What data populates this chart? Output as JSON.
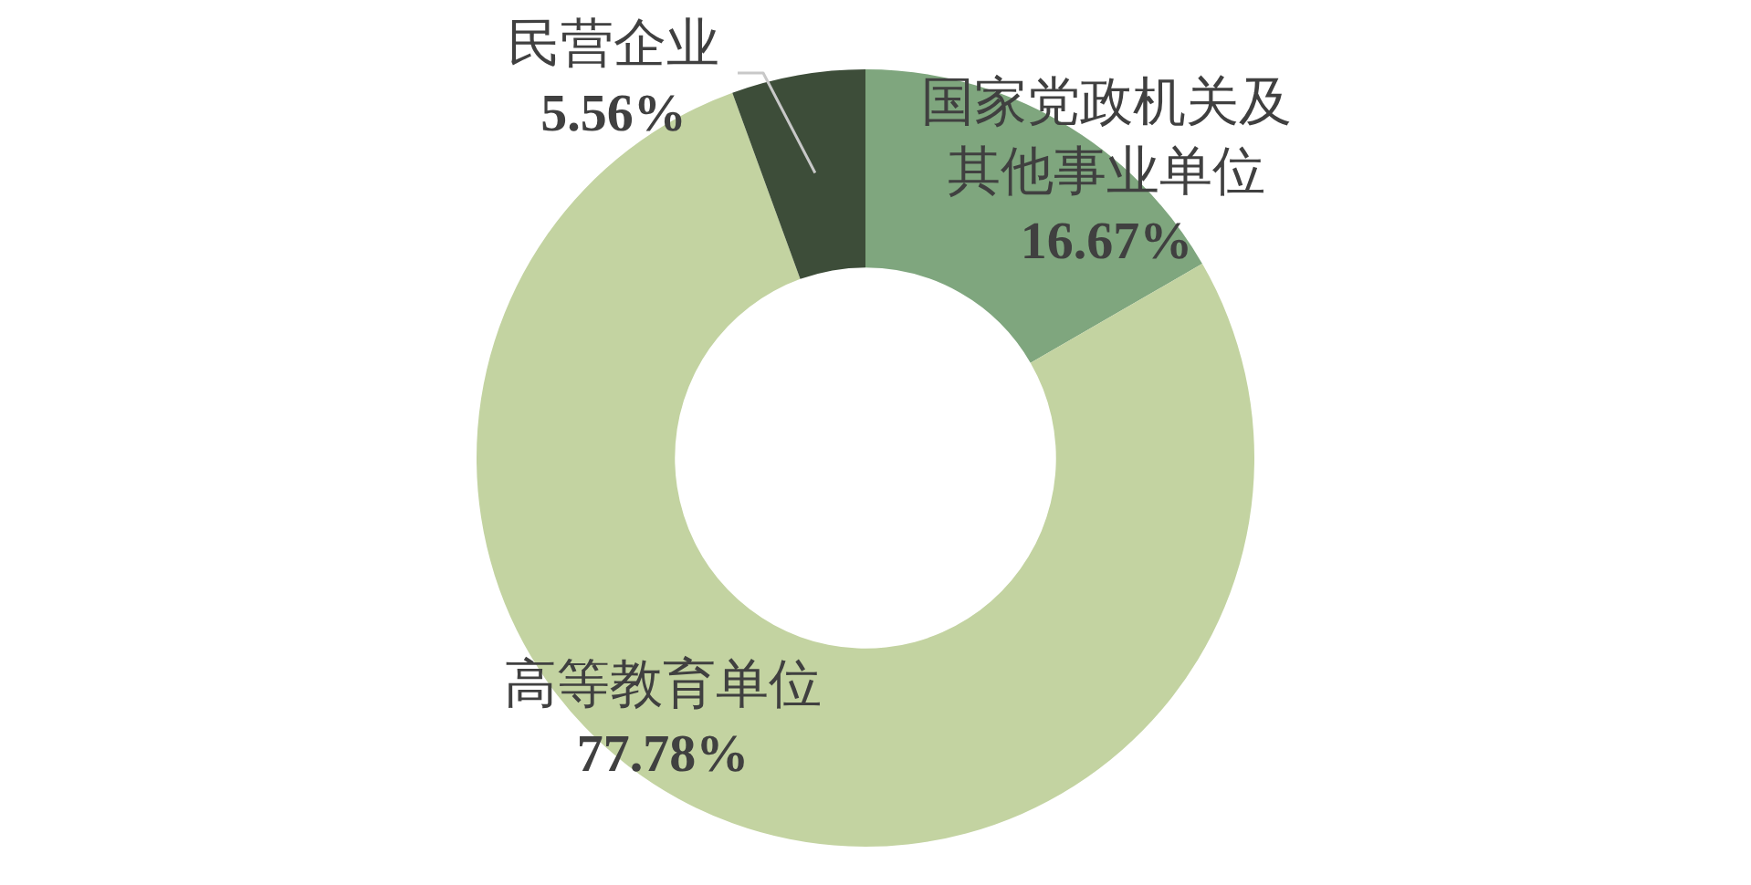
{
  "chart_data": {
    "type": "donut",
    "categories": [
      "国家党政机关及其他事业单位",
      "高等教育单位",
      "民营企业"
    ],
    "values": [
      16.67,
      77.78,
      5.56
    ],
    "colors": [
      "#7fa67e",
      "#c3d3a1",
      "#3d4d39"
    ],
    "value_labels": [
      "16.67%",
      "77.78%",
      "5.56%"
    ],
    "legend": false
  }
}
